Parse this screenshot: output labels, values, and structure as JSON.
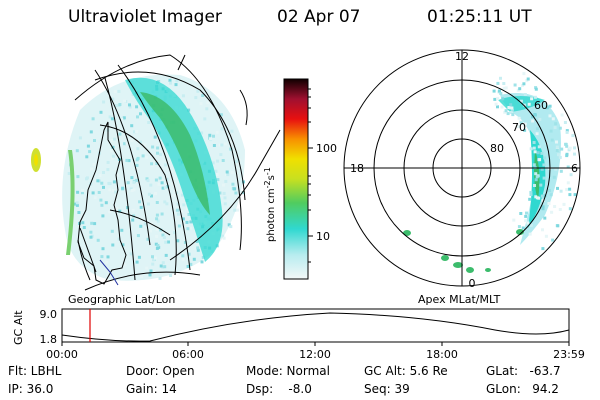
{
  "header": {
    "instrument": "Ultraviolet Imager",
    "date": "02 Apr 07",
    "time": "01:25:11 UT"
  },
  "left_panel": {
    "caption": "Geographic Lat/Lon"
  },
  "colorbar": {
    "unit_label": "photon cm",
    "unit_sup1": "-2",
    "unit_mid": "s",
    "unit_sup2": "-1",
    "ticks": [
      "100",
      "10"
    ]
  },
  "polar_panel": {
    "caption": "Apex MLat/MLT",
    "mlt_labels": [
      "12",
      "18",
      "6",
      "0"
    ],
    "lat_labels": [
      "60",
      "70",
      "80"
    ]
  },
  "altitude_plot": {
    "ylabel": "GC Alt",
    "yticks": [
      "9.0",
      "1.8"
    ],
    "xticks": [
      "00:00",
      "06:00",
      "12:00",
      "18:00",
      "23:59"
    ]
  },
  "footer": {
    "flt": "Flt: LBHL",
    "ip": "IP: 36.0",
    "door": "Door: Open",
    "gain": "Gain: 14",
    "mode": "Mode: Normal",
    "dsp": "Dsp:    -8.0",
    "gcalt": "GC Alt: 5.6 Re",
    "seq": "Seq: 39",
    "glat": "GLat:   -63.7",
    "glon": "GLon:   94.2"
  },
  "colors": {
    "aurora_low": "#a8e8ee",
    "aurora_mid": "#30d8d0",
    "aurora_high": "#3cbc6c",
    "marker": "#e00000"
  }
}
